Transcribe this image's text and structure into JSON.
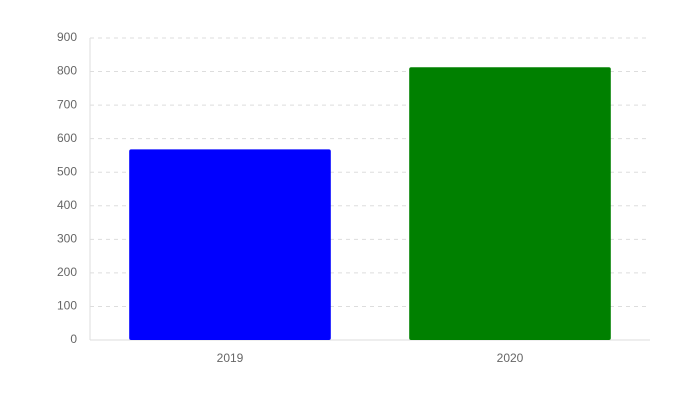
{
  "chart_data": {
    "type": "bar",
    "categories": [
      "2019",
      "2020"
    ],
    "values": [
      568,
      813
    ],
    "colors": [
      "#0000ff",
      "#008000"
    ],
    "ylim": [
      0,
      900
    ],
    "yticks": [
      0,
      100,
      200,
      300,
      400,
      500,
      600,
      700,
      800,
      900
    ],
    "grid": true
  }
}
